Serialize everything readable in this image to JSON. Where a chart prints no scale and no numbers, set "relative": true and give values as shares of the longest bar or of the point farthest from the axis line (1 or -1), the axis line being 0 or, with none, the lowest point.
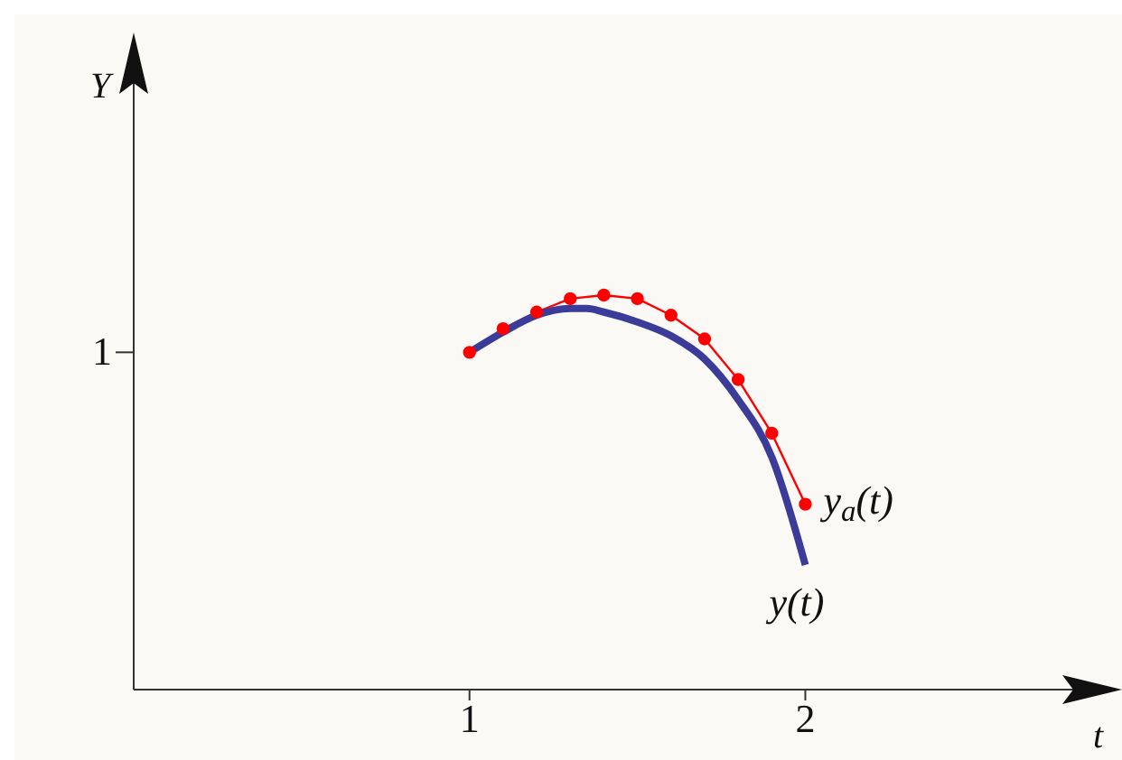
{
  "chart_data": {
    "type": "line",
    "relative": true,
    "xlabel": "t",
    "xlim": [
      0,
      2.9
    ],
    "xticks": [
      1,
      2
    ],
    "annotations": [
      "1",
      "Y"
    ],
    "series": [
      {
        "name": "y$_{a}$(t)",
        "color": "#ff0000",
        "marker": "circle",
        "x": [
          1,
          1.1,
          1.2,
          1.3,
          1.4,
          1.5,
          1.6,
          1.7,
          1.8,
          1.9,
          2
        ],
        "values": [
          0.855,
          0.915,
          0.957,
          0.991,
          1,
          0.991,
          0.949,
          0.889,
          0.786,
          0.65,
          0.47
        ]
      },
      {
        "name": "y(t)",
        "color": "#3b3b9a",
        "marker": "none",
        "x": [
          1,
          1.1,
          1.2,
          1.3,
          1.35,
          1.4,
          1.5,
          1.6,
          1.7,
          1.8,
          1.9,
          2
        ],
        "values": [
          0.855,
          0.906,
          0.949,
          0.966,
          0.966,
          0.957,
          0.932,
          0.897,
          0.838,
          0.735,
          0.59,
          0.316
        ]
      }
    ]
  }
}
